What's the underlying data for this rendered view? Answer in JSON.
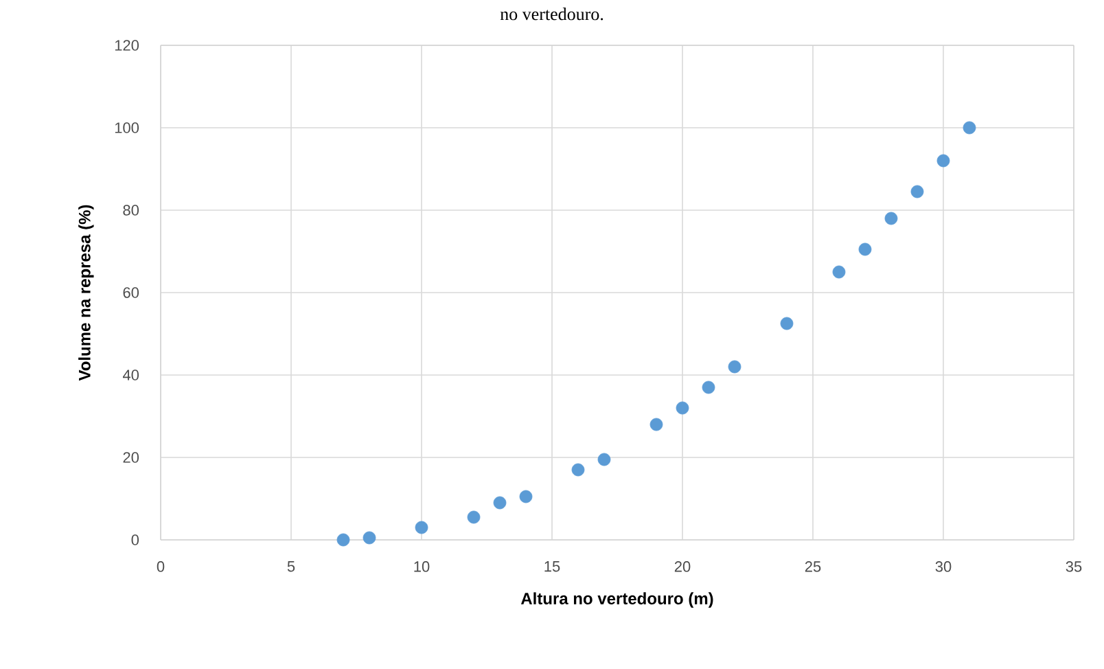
{
  "chart_data": {
    "type": "scatter",
    "annotations": [
      "no vertedouro."
    ],
    "xlabel": "Altura no vertedouro (m)",
    "ylabel": "Volume na represa (%)",
    "x": [
      7,
      8,
      10,
      12,
      13,
      14,
      16,
      17,
      19,
      20,
      21,
      22,
      24,
      26,
      27,
      28,
      29,
      30,
      31
    ],
    "values": [
      0,
      0.5,
      3,
      5.5,
      9,
      10.5,
      17,
      19.5,
      28,
      32,
      37,
      42,
      52.5,
      65,
      70.5,
      78,
      84.5,
      92,
      100
    ],
    "color": "#5b9bd5",
    "marker": "circle",
    "xlim": [
      0,
      35
    ],
    "xticks": [
      0,
      5,
      10,
      15,
      20,
      25,
      30,
      35
    ],
    "ylim": [
      0,
      120
    ],
    "yticks": [
      0,
      20,
      40,
      60,
      80,
      100,
      120
    ],
    "grid": true
  }
}
